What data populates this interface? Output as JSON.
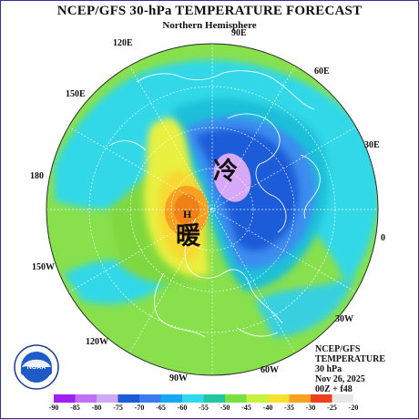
{
  "title": "NCEP/GFS 30-hPa TEMPERATURE FORECAST",
  "subtitle": "Northern Hemisphere",
  "longitude_labels": [
    "90E",
    "60E",
    "120E",
    "150E",
    "30E",
    "180",
    "0",
    "150W",
    "30W",
    "120W",
    "60W",
    "90W"
  ],
  "labels": {
    "high": "H",
    "warm": "暖",
    "cold": "冷"
  },
  "info": {
    "line1": "NCEP/GFS",
    "line2": "TEMPERATURE",
    "line3": "30 hPa",
    "line4": "Nov 26, 2025",
    "line5": "00Z + f48"
  },
  "colorbar": {
    "ticks": [
      "-90",
      "-85",
      "-80",
      "-75",
      "-70",
      "-65",
      "-60",
      "-55",
      "-50",
      "-45",
      "-40",
      "-35",
      "-30",
      "-25",
      "-20"
    ],
    "colors": [
      "#a020f0",
      "#c070f0",
      "#d0a8f8",
      "#1c5cd8",
      "#3c7cf0",
      "#18a8f0",
      "#30d8f0",
      "#20c8a0",
      "#78e040",
      "#c8f040",
      "#f8e030",
      "#f8a020",
      "#f04020",
      "#e8e8e8"
    ]
  },
  "logo": {
    "text": "NOAA",
    "ring_text": "NATIONAL OCEANIC AND ATMOSPHERIC ADMINISTRATION · U.S. DEPARTMENT OF COMMERCE"
  }
}
